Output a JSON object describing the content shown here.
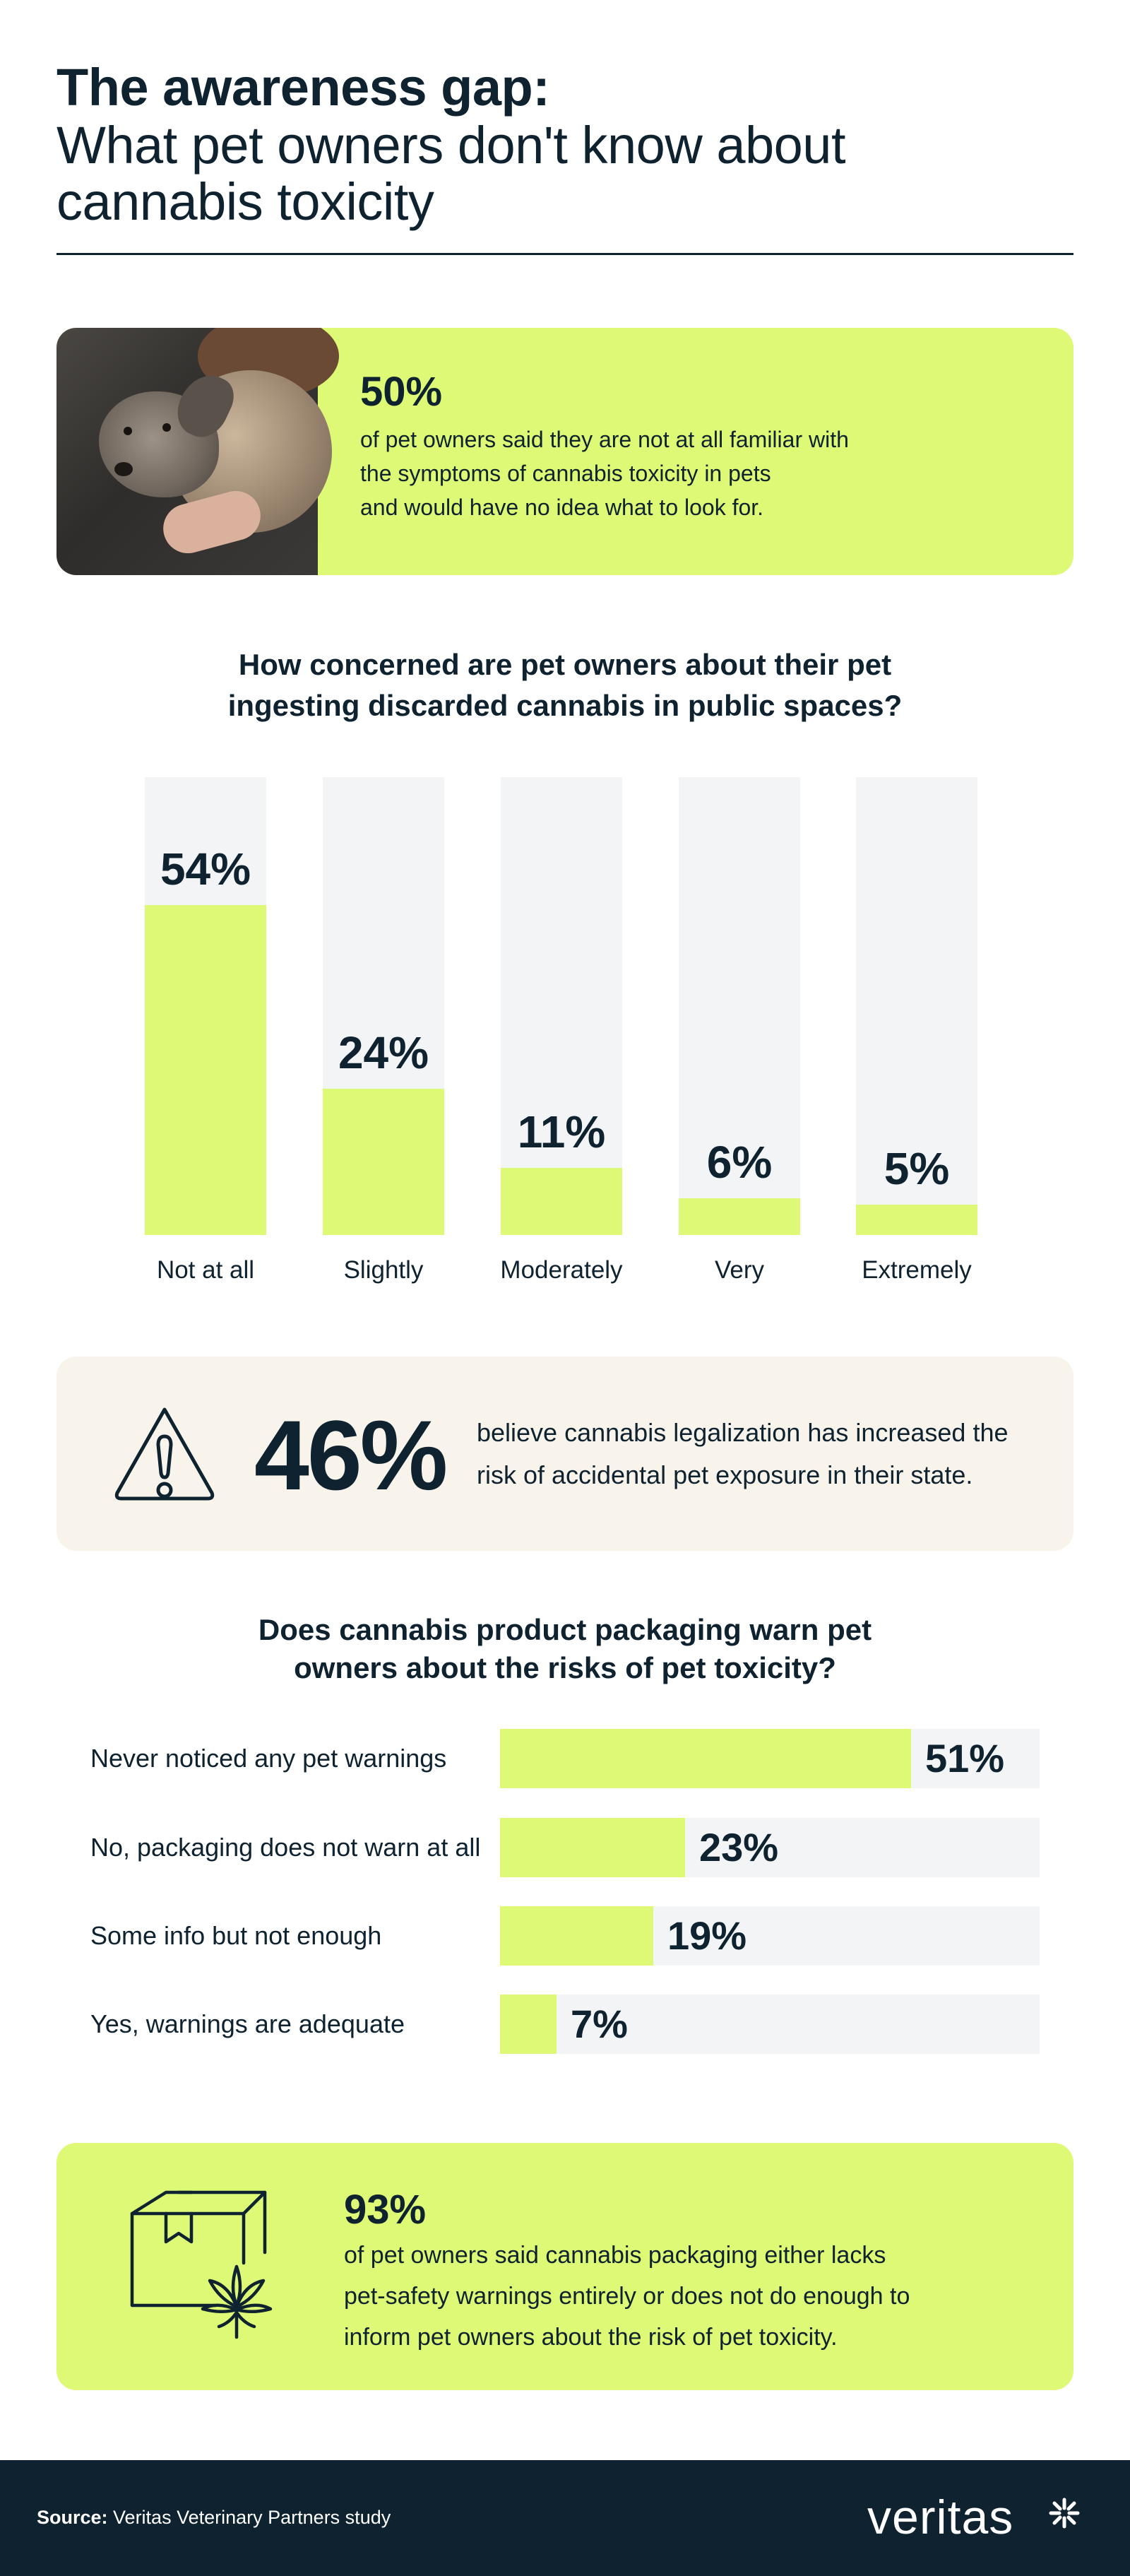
{
  "header": {
    "title_bold": "The awareness gap:",
    "title_line2": "What pet owners don't know about",
    "title_line3": "cannabis toxicity"
  },
  "stat1": {
    "value": "50%",
    "desc_line1": "of pet owners said they are not at all familiar with",
    "desc_line2": "the symptoms of cannabis toxicity in pets",
    "desc_line3": "and would have no idea what to look for."
  },
  "q1": {
    "line1": "How concerned are pet owners about their pet",
    "line2": "ingesting discarded cannabis in public spaces?"
  },
  "stat2": {
    "value": "46%",
    "desc_line1": "believe cannabis legalization has increased the",
    "desc_line2": "risk of accidental pet exposure in their state."
  },
  "q2": {
    "line1": "Does cannabis product packaging warn pet",
    "line2": "owners about the risks of pet toxicity?"
  },
  "stat3": {
    "value": "93%",
    "desc_line1": "of pet owners said cannabis packaging either lacks",
    "desc_line2": "pet-safety warnings entirely or does not do enough to",
    "desc_line3": "inform pet owners about the risk of pet toxicity."
  },
  "footer": {
    "source_label": "Source:",
    "source_text": " Veritas Veterinary Partners study",
    "logo": "veritas"
  },
  "colors": {
    "accent": "#ddf975",
    "track": "#f3f4f6",
    "ink": "#0f2230",
    "cream": "#f8f4ec"
  },
  "chart_data": [
    {
      "type": "bar",
      "orientation": "vertical",
      "title": "How concerned are pet owners about their pet ingesting discarded cannabis in public spaces?",
      "categories": [
        "Not at all",
        "Slightly",
        "Moderately",
        "Very",
        "Extremely"
      ],
      "values": [
        54,
        24,
        11,
        6,
        5
      ],
      "value_labels": [
        "54%",
        "24%",
        "11%",
        "6%",
        "5%"
      ],
      "ylim": [
        0,
        75
      ],
      "grid": false
    },
    {
      "type": "bar",
      "orientation": "horizontal",
      "title": "Does cannabis product packaging warn pet owners about the risks of pet toxicity?",
      "categories": [
        "Never noticed any pet warnings",
        "No, packaging does not warn at all",
        "Some info but not enough",
        "Yes, warnings are adequate"
      ],
      "values": [
        51,
        23,
        19,
        7
      ],
      "value_labels": [
        "51%",
        "23%",
        "19%",
        "7%"
      ],
      "xlim": [
        0,
        67
      ],
      "grid": false
    }
  ]
}
